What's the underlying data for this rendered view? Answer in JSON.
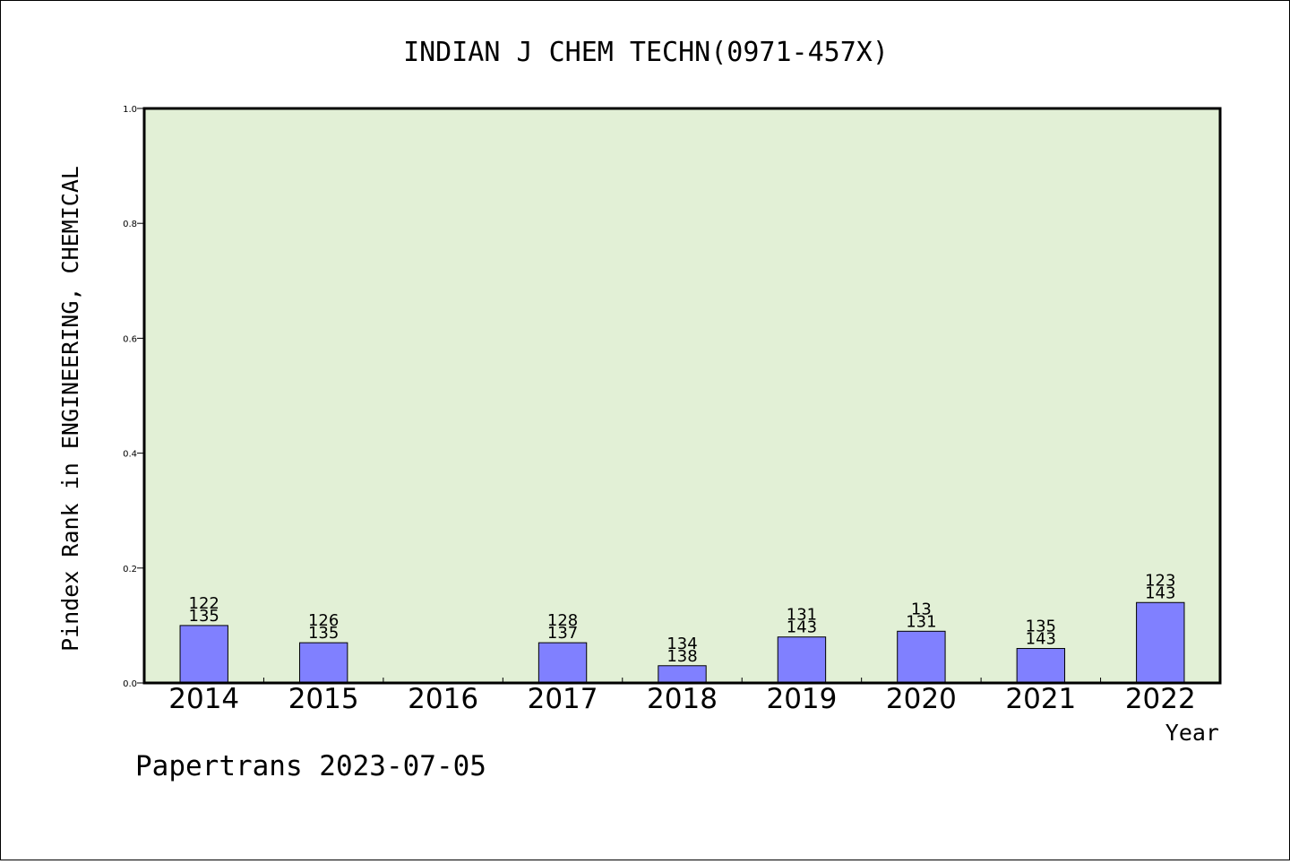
{
  "chart_data": {
    "type": "bar",
    "title": "INDIAN J CHEM TECHN(0971-457X)",
    "xlabel": "Year",
    "ylabel": "Pindex Rank in ENGINEERING, CHEMICAL",
    "ylim": [
      0,
      1.0
    ],
    "yticks": [
      "0.0",
      "0.2",
      "0.4",
      "0.6",
      "0.8",
      "1.0"
    ],
    "categories": [
      "2014",
      "2015",
      "2016",
      "2017",
      "2018",
      "2019",
      "2020",
      "2021",
      "2022"
    ],
    "values": [
      0.1,
      0.07,
      null,
      0.07,
      0.03,
      0.08,
      0.09,
      0.06,
      0.14
    ],
    "labels_top": [
      "122",
      "126",
      "",
      "128",
      "134",
      "131",
      "13",
      "135",
      "123"
    ],
    "labels_bottom": [
      "135",
      "135",
      "",
      "137",
      "138",
      "143",
      "131",
      "143",
      "143"
    ],
    "grid": false,
    "plot_background": "#e2f0d6",
    "bar_color": "#8080ff"
  },
  "footer": "Papertrans 2023-07-05"
}
